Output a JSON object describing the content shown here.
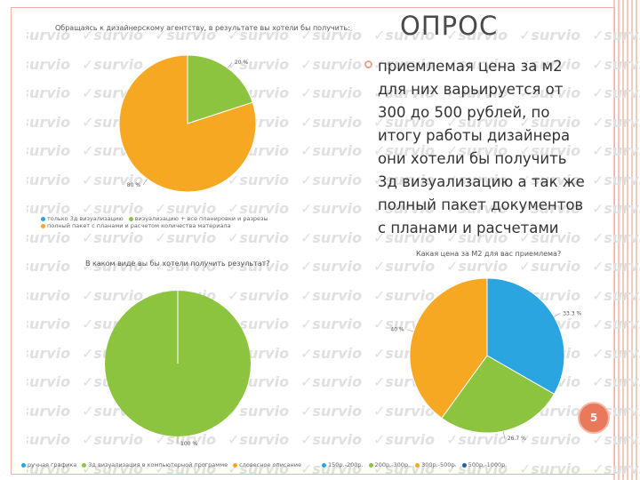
{
  "slide": {
    "title": "ОПРОС",
    "bullet": "приемлемая цена за м2 для них варьируется от 300 до 500 рублей, по итогу работы дизайнера они хотели бы получить 3д визуализацию а так же полный пакет документов с планами и расчетами",
    "page_number": "5",
    "watermark": "survio",
    "colors": {
      "accent": "#e9795b",
      "border": "#f3c9bb"
    }
  },
  "chart_data": [
    {
      "type": "pie",
      "title": "Обращаясь к дизайнерскому агентству, в результате вы хотели бы получить:",
      "categories": [
        "только 3д визуализацию",
        "визуализацию + все планировки и разрезы",
        "полный пакет с планами и расчетом количества материала"
      ],
      "values": [
        0,
        20,
        80
      ],
      "data_labels": [
        "",
        "20 %",
        "80 %"
      ],
      "colors": [
        "#2aa5e0",
        "#8dc43f",
        "#f7a823"
      ],
      "legend": "bottom"
    },
    {
      "type": "pie",
      "title": "В каком виде вы бы хотели получить результат?",
      "categories": [
        "ручная графика",
        "3д визуализация в компьютерной программе",
        "словесное описание"
      ],
      "values": [
        0,
        100,
        0
      ],
      "data_labels": [
        "",
        "100 %",
        ""
      ],
      "colors": [
        "#2aa5e0",
        "#8dc43f",
        "#f7a823"
      ],
      "legend": "bottom"
    },
    {
      "type": "pie",
      "title": "Какая цена за М2 для вас приемлема?",
      "categories": [
        "150р.-200р.",
        "200р.-300р.",
        "300р.-500р.",
        "500р.-1000р."
      ],
      "values": [
        33.3,
        26.7,
        40,
        0
      ],
      "data_labels": [
        "33.3 %",
        "26.7 %",
        "40 %",
        ""
      ],
      "colors": [
        "#2aa5e0",
        "#8dc43f",
        "#f7a823",
        "#2e5f9a"
      ],
      "legend": "bottom"
    }
  ]
}
